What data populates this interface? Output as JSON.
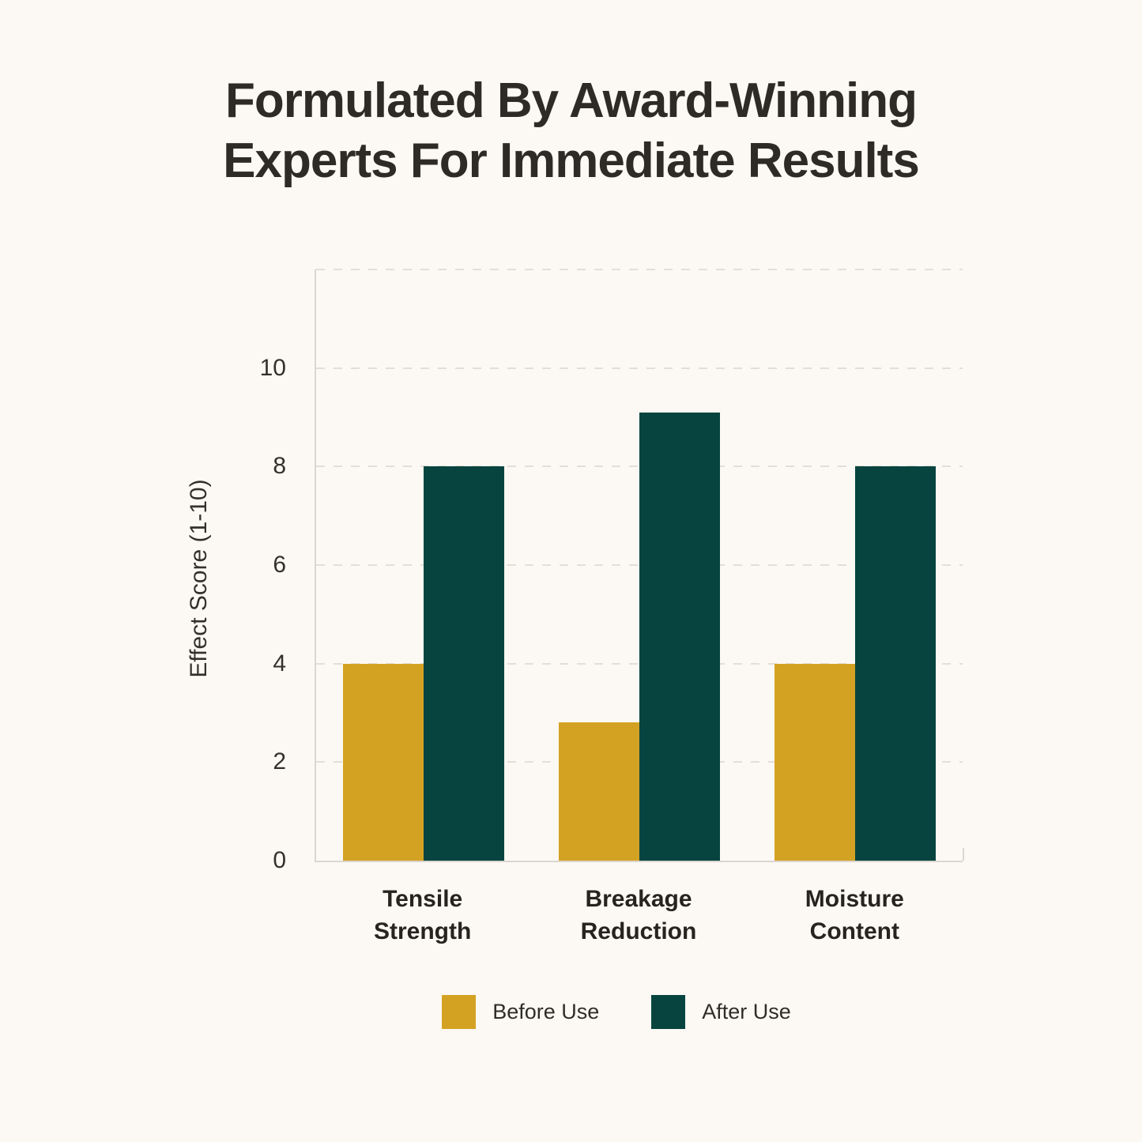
{
  "title": {
    "line1": "Formulated By Award-Winning",
    "line2": "Experts For Immediate Results"
  },
  "chart_data": {
    "type": "bar",
    "title": "Formulated By Award-Winning Experts For Immediate Results",
    "categories": [
      "Tensile Strength",
      "Breakage Reduction",
      "Moisture Content"
    ],
    "series": [
      {
        "name": "Before Use",
        "color": "#D4A223",
        "values": [
          4,
          2.8,
          4
        ]
      },
      {
        "name": "After Use",
        "color": "#07443F",
        "values": [
          8,
          9.1,
          8
        ]
      }
    ],
    "xlabel": "",
    "ylabel": "Effect Score (1-10)",
    "ylim": [
      0,
      12
    ],
    "ytick_values": [
      0,
      2,
      4,
      6,
      8,
      10
    ],
    "ytick_labels": [
      "0",
      "2",
      "4",
      "6",
      "8",
      "10"
    ],
    "grid_values": [
      2,
      4,
      6,
      8,
      10,
      12
    ],
    "grid": "horizontal dashed",
    "legend_position": "bottom"
  },
  "colors": {
    "background": "#FCF8F3",
    "axis": "#DAD6D0",
    "gridline": "#E3DFD8",
    "title_text": "#2E2B27",
    "tick_text": "#34312D",
    "category_text": "#262320"
  }
}
